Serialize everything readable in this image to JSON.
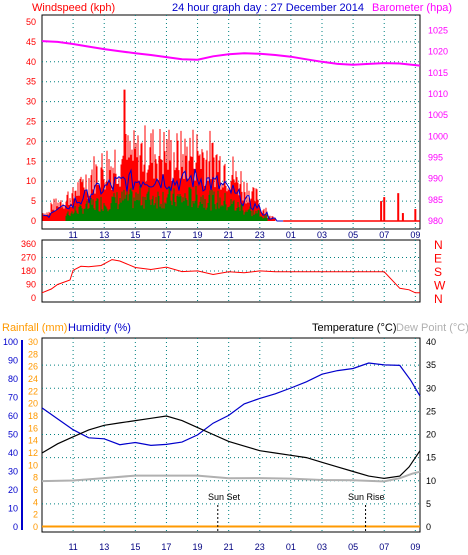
{
  "header": {
    "left_label": "Windspeed (kph)",
    "title": "24 hour graph day : 27 December 2014",
    "right_label": "Barometer (hpa)"
  },
  "bottom_labels": {
    "rainfall": "Rainfall (mm)",
    "humidity": "Humidity (%)",
    "temperature": "Temperature (°C)",
    "dewpoint": "Dew Point (°C)"
  },
  "markers": {
    "sunset": "Sun Set",
    "sunrise": "Sun Rise"
  },
  "colors": {
    "wind": "#ff0000",
    "gust_avg": "#0000cc",
    "wind_green": "#008000",
    "barometer": "#ff00ff",
    "rain": "#ff9900",
    "humidity": "#0000cc",
    "temperature": "#000000",
    "dewpoint": "#b0b0b0",
    "grid": "#008080",
    "axis_blue": "#0000cc"
  },
  "chart_data": [
    {
      "type": "bar",
      "name": "wind",
      "x_tick_labels": [
        "11",
        "13",
        "15",
        "17",
        "19",
        "21",
        "23",
        "01",
        "03",
        "05",
        "07",
        "09"
      ],
      "y_left_ticks": [
        0,
        5,
        10,
        15,
        20,
        25,
        30,
        35,
        40,
        45,
        50
      ],
      "y_right_ticks": [
        980,
        985,
        990,
        995,
        1000,
        1005,
        1010,
        1015,
        1020,
        1025
      ],
      "ylim_left": [
        0,
        50
      ],
      "ylim_right": [
        980,
        1027
      ],
      "wind_profile": [
        2,
        4,
        5,
        6,
        8,
        10,
        12,
        13,
        14,
        15,
        16,
        16,
        17,
        17,
        17,
        17,
        16,
        16,
        17,
        17,
        16,
        15,
        14,
        12,
        10,
        8,
        6,
        3,
        1,
        0
      ],
      "wind_peak": 33,
      "barometer": [
        {
          "x": 9.0,
          "y": 1022.5
        },
        {
          "x": 10.0,
          "y": 1022.3
        },
        {
          "x": 11.0,
          "y": 1021.8
        },
        {
          "x": 12.0,
          "y": 1021.2
        },
        {
          "x": 13.0,
          "y": 1020.6
        },
        {
          "x": 14.0,
          "y": 1020.1
        },
        {
          "x": 15.0,
          "y": 1019.6
        },
        {
          "x": 16.0,
          "y": 1019.2
        },
        {
          "x": 17.0,
          "y": 1018.7
        },
        {
          "x": 18.0,
          "y": 1018.2
        },
        {
          "x": 19.0,
          "y": 1018.1
        },
        {
          "x": 20.0,
          "y": 1018.9
        },
        {
          "x": 21.0,
          "y": 1019.4
        },
        {
          "x": 22.0,
          "y": 1019.6
        },
        {
          "x": 23.0,
          "y": 1019.5
        },
        {
          "x": 24.0,
          "y": 1019.2
        },
        {
          "x": 25.0,
          "y": 1018.8
        },
        {
          "x": 26.0,
          "y": 1018.2
        },
        {
          "x": 27.0,
          "y": 1017.6
        },
        {
          "x": 28.0,
          "y": 1017.1
        },
        {
          "x": 29.0,
          "y": 1016.9
        },
        {
          "x": 30.0,
          "y": 1017.1
        },
        {
          "x": 31.0,
          "y": 1017.3
        },
        {
          "x": 32.0,
          "y": 1017.2
        },
        {
          "x": 33.3,
          "y": 1016.7
        }
      ]
    },
    {
      "type": "line",
      "name": "wind direction",
      "y_ticks": [
        0,
        90,
        180,
        270,
        360
      ],
      "y_tick_labels": [
        "0",
        "90",
        "180",
        "270",
        "360"
      ],
      "compass_labels": [
        "N",
        "W",
        "S",
        "E",
        "N"
      ],
      "ylim": [
        0,
        360
      ],
      "series": [
        {
          "x": 9.0,
          "y": 35
        },
        {
          "x": 9.6,
          "y": 60
        },
        {
          "x": 10.0,
          "y": 90
        },
        {
          "x": 10.8,
          "y": 120
        },
        {
          "x": 11.0,
          "y": 205
        },
        {
          "x": 11.5,
          "y": 200
        },
        {
          "x": 12.0,
          "y": 225
        },
        {
          "x": 12.8,
          "y": 235
        },
        {
          "x": 13.5,
          "y": 240
        },
        {
          "x": 14.0,
          "y": 238
        },
        {
          "x": 15.0,
          "y": 228
        },
        {
          "x": 16.0,
          "y": 205
        },
        {
          "x": 17.0,
          "y": 200
        },
        {
          "x": 18.0,
          "y": 195
        },
        {
          "x": 19.0,
          "y": 190
        },
        {
          "x": 20.0,
          "y": 160
        },
        {
          "x": 21.0,
          "y": 155
        },
        {
          "x": 22.0,
          "y": 165
        },
        {
          "x": 23.0,
          "y": 180
        },
        {
          "x": 24.0,
          "y": 175
        },
        {
          "x": 25.0,
          "y": 175
        },
        {
          "x": 27.0,
          "y": 175
        },
        {
          "x": 29.0,
          "y": 175
        },
        {
          "x": 31.0,
          "y": 175
        },
        {
          "x": 32.0,
          "y": 65
        },
        {
          "x": 32.6,
          "y": 55
        },
        {
          "x": 33.0,
          "y": 35
        },
        {
          "x": 33.3,
          "y": 35
        }
      ]
    },
    {
      "type": "line",
      "name": "rain humidity temperature",
      "rain_ticks": [
        0,
        2,
        4,
        6,
        8,
        10,
        12,
        14,
        16,
        18,
        20,
        22,
        24,
        26,
        28,
        30
      ],
      "humidity_ticks": [
        0,
        10,
        20,
        30,
        40,
        50,
        60,
        70,
        80,
        90,
        100
      ],
      "temperature_ticks": [
        0,
        5,
        10,
        15,
        20,
        25,
        30,
        35,
        40
      ],
      "ylim_temperature": [
        0,
        40
      ],
      "ylim_humidity": [
        0,
        100
      ],
      "rainfall": [
        {
          "x": 9.0,
          "y": 0
        },
        {
          "x": 33.3,
          "y": 0
        }
      ],
      "humidity": [
        {
          "x": 9.0,
          "y": 65
        },
        {
          "x": 10.0,
          "y": 58
        },
        {
          "x": 11.0,
          "y": 52
        },
        {
          "x": 12.0,
          "y": 49
        },
        {
          "x": 13.0,
          "y": 47
        },
        {
          "x": 14.0,
          "y": 45
        },
        {
          "x": 15.0,
          "y": 45
        },
        {
          "x": 16.0,
          "y": 44
        },
        {
          "x": 17.0,
          "y": 44
        },
        {
          "x": 18.0,
          "y": 46
        },
        {
          "x": 19.0,
          "y": 50
        },
        {
          "x": 20.0,
          "y": 56
        },
        {
          "x": 21.0,
          "y": 61
        },
        {
          "x": 22.0,
          "y": 66
        },
        {
          "x": 23.0,
          "y": 69
        },
        {
          "x": 24.0,
          "y": 72
        },
        {
          "x": 25.0,
          "y": 75
        },
        {
          "x": 26.0,
          "y": 79
        },
        {
          "x": 27.0,
          "y": 83
        },
        {
          "x": 28.0,
          "y": 85
        },
        {
          "x": 29.0,
          "y": 86
        },
        {
          "x": 30.0,
          "y": 88
        },
        {
          "x": 31.0,
          "y": 88
        },
        {
          "x": 32.0,
          "y": 87
        },
        {
          "x": 32.7,
          "y": 80
        },
        {
          "x": 33.3,
          "y": 71
        }
      ],
      "temperature": [
        {
          "x": 9.0,
          "y": 16
        },
        {
          "x": 10.0,
          "y": 18
        },
        {
          "x": 11.0,
          "y": 19.5
        },
        {
          "x": 12.0,
          "y": 21
        },
        {
          "x": 13.0,
          "y": 22
        },
        {
          "x": 14.0,
          "y": 22.5
        },
        {
          "x": 15.0,
          "y": 23
        },
        {
          "x": 16.0,
          "y": 23.5
        },
        {
          "x": 17.0,
          "y": 24
        },
        {
          "x": 18.0,
          "y": 23
        },
        {
          "x": 19.0,
          "y": 21.5
        },
        {
          "x": 20.0,
          "y": 20
        },
        {
          "x": 21.0,
          "y": 18.5
        },
        {
          "x": 22.0,
          "y": 17.5
        },
        {
          "x": 23.0,
          "y": 16.5
        },
        {
          "x": 24.0,
          "y": 16
        },
        {
          "x": 25.0,
          "y": 15.5
        },
        {
          "x": 26.0,
          "y": 15
        },
        {
          "x": 27.0,
          "y": 14
        },
        {
          "x": 28.0,
          "y": 13
        },
        {
          "x": 29.0,
          "y": 12
        },
        {
          "x": 30.0,
          "y": 11
        },
        {
          "x": 31.0,
          "y": 10.5
        },
        {
          "x": 32.0,
          "y": 11
        },
        {
          "x": 32.6,
          "y": 13
        },
        {
          "x": 33.3,
          "y": 16.5
        }
      ],
      "dewpoint": [
        {
          "x": 9.0,
          "y": 10
        },
        {
          "x": 11.0,
          "y": 10
        },
        {
          "x": 13.0,
          "y": 10.5
        },
        {
          "x": 15.0,
          "y": 11
        },
        {
          "x": 17.0,
          "y": 11
        },
        {
          "x": 19.0,
          "y": 11
        },
        {
          "x": 21.0,
          "y": 10.5
        },
        {
          "x": 23.0,
          "y": 10.5
        },
        {
          "x": 25.0,
          "y": 10.5
        },
        {
          "x": 27.0,
          "y": 10
        },
        {
          "x": 29.0,
          "y": 10
        },
        {
          "x": 31.0,
          "y": 10
        },
        {
          "x": 32.0,
          "y": 10.5
        },
        {
          "x": 32.8,
          "y": 11.5
        },
        {
          "x": 33.3,
          "y": 12
        }
      ],
      "sunset_hour": 20.3,
      "sunrise_hour": 29.8
    }
  ]
}
